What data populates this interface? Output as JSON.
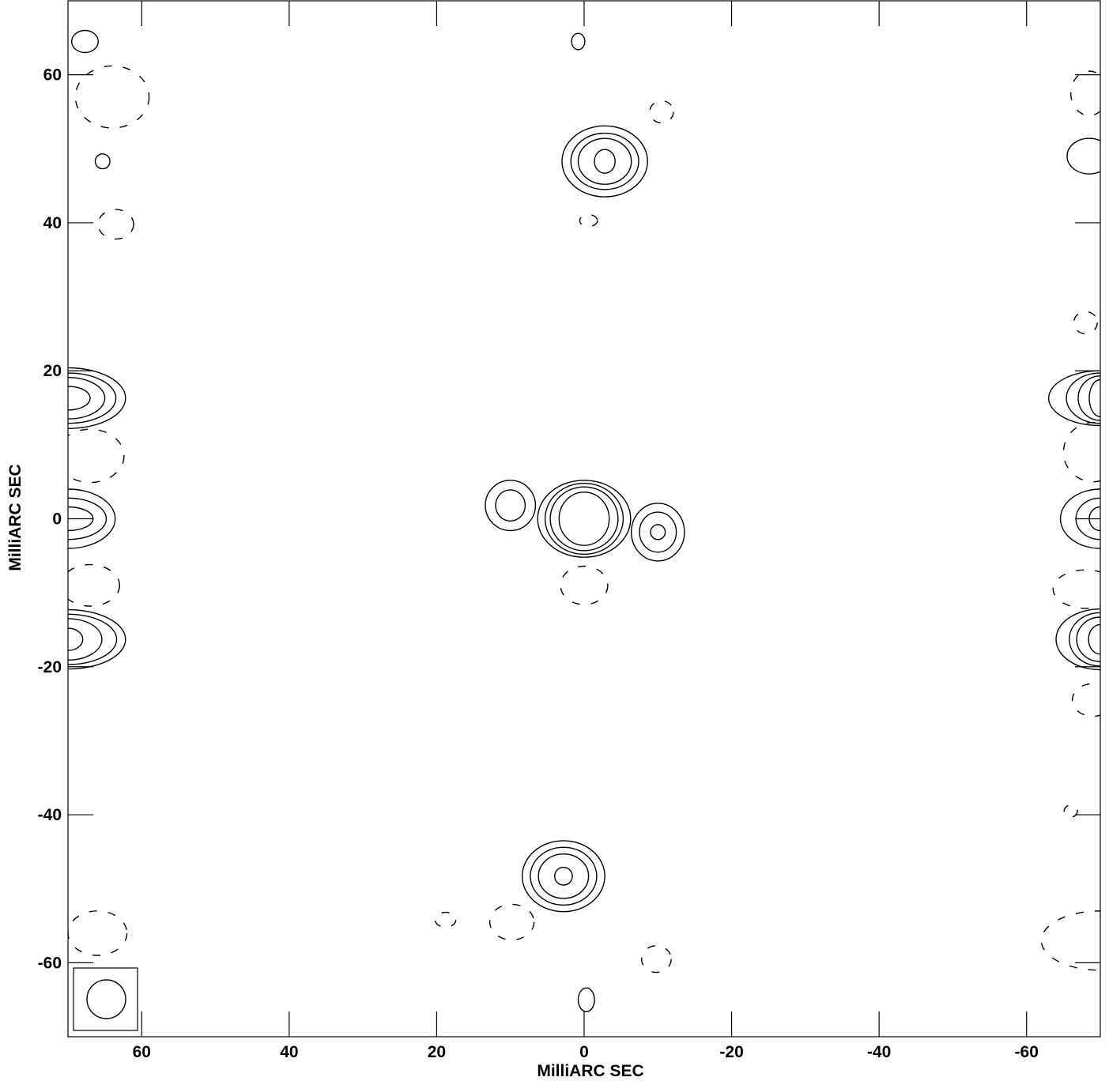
{
  "chart_data": {
    "type": "contour",
    "xlabel": "MilliARC SEC",
    "ylabel": "MilliARC SEC",
    "xlim": [
      70,
      -70
    ],
    "ylim": [
      -70,
      70
    ],
    "x_ticks": [
      60,
      40,
      20,
      0,
      -20,
      -40,
      -60
    ],
    "y_ticks": [
      60,
      40,
      20,
      0,
      -20,
      -40,
      -60
    ],
    "x_tick_labels": [
      "60",
      "40",
      "20",
      "0",
      "-20",
      "-40",
      "-60"
    ],
    "y_tick_labels": [
      "60",
      "40",
      "20",
      "0",
      "-20",
      "-40",
      "-60"
    ],
    "grid": false,
    "beam": {
      "corner": "bottom-left",
      "shape": "ellipse"
    },
    "features": [
      {
        "name": "central-core",
        "x": 0,
        "y": 0,
        "levels": [
          {
            "rx": 3.4,
            "ry": 3.6,
            "neg": false
          },
          {
            "rx": 4.6,
            "ry": 4.3,
            "neg": false
          },
          {
            "rx": 5.3,
            "ry": 4.8,
            "neg": false
          },
          {
            "rx": 6.3,
            "ry": 5.2,
            "neg": false
          },
          {
            "rx": 3.2,
            "ry": 2.6,
            "neg": true,
            "cx": 0,
            "cy": -9
          }
        ]
      },
      {
        "name": "east-component",
        "x": 10,
        "y": 1.8,
        "levels": [
          {
            "rx": 2.0,
            "ry": 2.1,
            "neg": false
          },
          {
            "rx": 3.4,
            "ry": 3.4,
            "neg": false
          }
        ]
      },
      {
        "name": "west-component",
        "x": -10,
        "y": -1.8,
        "levels": [
          {
            "rx": 1.0,
            "ry": 1.0,
            "neg": false
          },
          {
            "rx": 2.5,
            "ry": 2.7,
            "neg": false
          },
          {
            "rx": 3.6,
            "ry": 3.9,
            "neg": false
          }
        ]
      },
      {
        "name": "north-source",
        "x": -2.8,
        "y": 48.3,
        "levels": [
          {
            "rx": 1.4,
            "ry": 1.6,
            "neg": false
          },
          {
            "rx": 3.6,
            "ry": 3.1,
            "neg": false
          },
          {
            "rx": 4.6,
            "ry": 3.8,
            "neg": false
          },
          {
            "rx": 5.8,
            "ry": 4.8,
            "neg": false
          }
        ]
      },
      {
        "name": "south-source",
        "x": 2.8,
        "y": -48.3,
        "levels": [
          {
            "rx": 1.2,
            "ry": 1.2,
            "neg": false
          },
          {
            "rx": 3.4,
            "ry": 3.0,
            "neg": false
          },
          {
            "rx": 4.5,
            "ry": 3.9,
            "neg": false
          },
          {
            "rx": 5.6,
            "ry": 4.8,
            "neg": false
          }
        ]
      },
      {
        "name": "north-blob",
        "x": 0.8,
        "y": 64.5,
        "levels": [
          {
            "rx": 0.9,
            "ry": 1.1,
            "neg": false
          }
        ]
      },
      {
        "name": "south-blob",
        "x": -0.3,
        "y": -65,
        "levels": [
          {
            "rx": 1.1,
            "ry": 1.6,
            "neg": false
          }
        ]
      },
      {
        "name": "left-upper",
        "x": 70,
        "y": 16.3,
        "levels": [
          {
            "rx": 3.0,
            "ry": 1.6,
            "neg": false
          },
          {
            "rx": 5.0,
            "ry": 2.8,
            "neg": false
          },
          {
            "rx": 6.5,
            "ry": 3.4,
            "neg": false
          },
          {
            "rx": 7.8,
            "ry": 4.1,
            "neg": false
          }
        ]
      },
      {
        "name": "left-middle",
        "x": 70,
        "y": 0,
        "levels": [
          {
            "rx": 3.4,
            "ry": 1.6,
            "neg": false
          },
          {
            "rx": 5.2,
            "ry": 2.8,
            "neg": false
          },
          {
            "rx": 6.4,
            "ry": 4.0,
            "neg": false
          }
        ]
      },
      {
        "name": "left-lower",
        "x": 70,
        "y": -16.3,
        "levels": [
          {
            "rx": 2.0,
            "ry": 1.5,
            "neg": false
          },
          {
            "rx": 4.6,
            "ry": 2.8,
            "neg": false
          },
          {
            "rx": 6.6,
            "ry": 3.4,
            "neg": false
          },
          {
            "rx": 7.8,
            "ry": 4.0,
            "neg": false
          }
        ]
      },
      {
        "name": "right-upper",
        "x": -70,
        "y": 16.3,
        "levels": [
          {
            "rx": 1.5,
            "ry": 2.5,
            "neg": false
          },
          {
            "rx": 3.0,
            "ry": 3.0,
            "neg": false
          },
          {
            "rx": 4.6,
            "ry": 3.4,
            "neg": false
          },
          {
            "rx": 7.0,
            "ry": 3.7,
            "neg": false
          }
        ]
      },
      {
        "name": "right-middle",
        "x": -70,
        "y": 0,
        "levels": [
          {
            "rx": 1.5,
            "ry": 1.6,
            "neg": false
          },
          {
            "rx": 3.3,
            "ry": 2.8,
            "neg": false
          },
          {
            "rx": 5.4,
            "ry": 4.0,
            "neg": false
          }
        ]
      },
      {
        "name": "right-lower",
        "x": -70,
        "y": -16.3,
        "levels": [
          {
            "rx": 1.6,
            "ry": 2.0,
            "neg": false
          },
          {
            "rx": 3.2,
            "ry": 3.0,
            "neg": false
          },
          {
            "rx": 4.2,
            "ry": 3.6,
            "neg": false
          },
          {
            "rx": 6.0,
            "ry": 4.1,
            "neg": false
          }
        ]
      },
      {
        "name": "left-top-blob",
        "x": 67.7,
        "y": 64.5,
        "levels": [
          {
            "rx": 1.8,
            "ry": 1.5,
            "neg": false
          }
        ]
      },
      {
        "name": "left-mid-blob",
        "x": 65.3,
        "y": 48.3,
        "levels": [
          {
            "rx": 1.0,
            "ry": 1.0,
            "neg": false
          }
        ]
      },
      {
        "name": "right-mid-blob",
        "x": -68.5,
        "y": 49,
        "levels": [
          {
            "rx": 3.0,
            "ry": 2.4,
            "neg": false
          }
        ]
      },
      {
        "name": "left-neg-top",
        "x": 64,
        "y": 57,
        "levels": [
          {
            "rx": 5.0,
            "ry": 4.2,
            "neg": true
          }
        ]
      },
      {
        "name": "left-neg-40",
        "x": 63.5,
        "y": 39.8,
        "levels": [
          {
            "rx": 2.4,
            "ry": 2.0,
            "neg": true
          }
        ]
      },
      {
        "name": "north-neg",
        "x": -10.5,
        "y": 55,
        "levels": [
          {
            "rx": 1.6,
            "ry": 1.5,
            "neg": true
          }
        ]
      },
      {
        "name": "north-neg-small",
        "x": -0.6,
        "y": 40.3,
        "levels": [
          {
            "rx": 1.2,
            "ry": 0.8,
            "neg": true
          }
        ]
      },
      {
        "name": "south-neg",
        "x": 9.8,
        "y": -54.5,
        "levels": [
          {
            "rx": 3.0,
            "ry": 2.4,
            "neg": true
          }
        ]
      },
      {
        "name": "south-neg-right",
        "x": -9.8,
        "y": -59.5,
        "levels": [
          {
            "rx": 2.0,
            "ry": 1.8,
            "neg": true
          }
        ]
      },
      {
        "name": "south-neg-left",
        "x": 18.8,
        "y": -54.2,
        "levels": [
          {
            "rx": 1.4,
            "ry": 1.0,
            "neg": true
          }
        ]
      },
      {
        "name": "right-neg-top",
        "x": -68.5,
        "y": 57.5,
        "levels": [
          {
            "rx": 2.5,
            "ry": 3.0,
            "neg": true
          }
        ]
      },
      {
        "name": "right-neg-25",
        "x": -68,
        "y": 26.5,
        "levels": [
          {
            "rx": 1.6,
            "ry": 1.5,
            "neg": true
          }
        ]
      },
      {
        "name": "right-neg-9",
        "x": -69,
        "y": 9,
        "levels": [
          {
            "rx": 4.0,
            "ry": 4.0,
            "neg": true
          }
        ]
      },
      {
        "name": "right-neg-m10",
        "x": -68,
        "y": -9.5,
        "levels": [
          {
            "rx": 4.4,
            "ry": 2.6,
            "neg": true
          }
        ]
      },
      {
        "name": "right-neg-m25",
        "x": -69,
        "y": -24.5,
        "levels": [
          {
            "rx": 2.8,
            "ry": 2.2,
            "neg": true
          }
        ]
      },
      {
        "name": "right-neg-m40",
        "x": -66,
        "y": -39.5,
        "levels": [
          {
            "rx": 0.9,
            "ry": 0.8,
            "neg": true
          }
        ]
      },
      {
        "name": "right-neg-m57",
        "x": -70,
        "y": -57,
        "levels": [
          {
            "rx": 8.0,
            "ry": 4.0,
            "neg": true
          }
        ]
      },
      {
        "name": "left-neg-9",
        "x": 67,
        "y": 8.5,
        "levels": [
          {
            "rx": 4.6,
            "ry": 3.6,
            "neg": true
          }
        ]
      },
      {
        "name": "left-neg-m9",
        "x": 67,
        "y": -9,
        "levels": [
          {
            "rx": 4.0,
            "ry": 2.8,
            "neg": true
          }
        ]
      },
      {
        "name": "left-neg-m56",
        "x": 66,
        "y": -56,
        "levels": [
          {
            "rx": 4.0,
            "ry": 3.0,
            "neg": true
          }
        ]
      }
    ]
  }
}
